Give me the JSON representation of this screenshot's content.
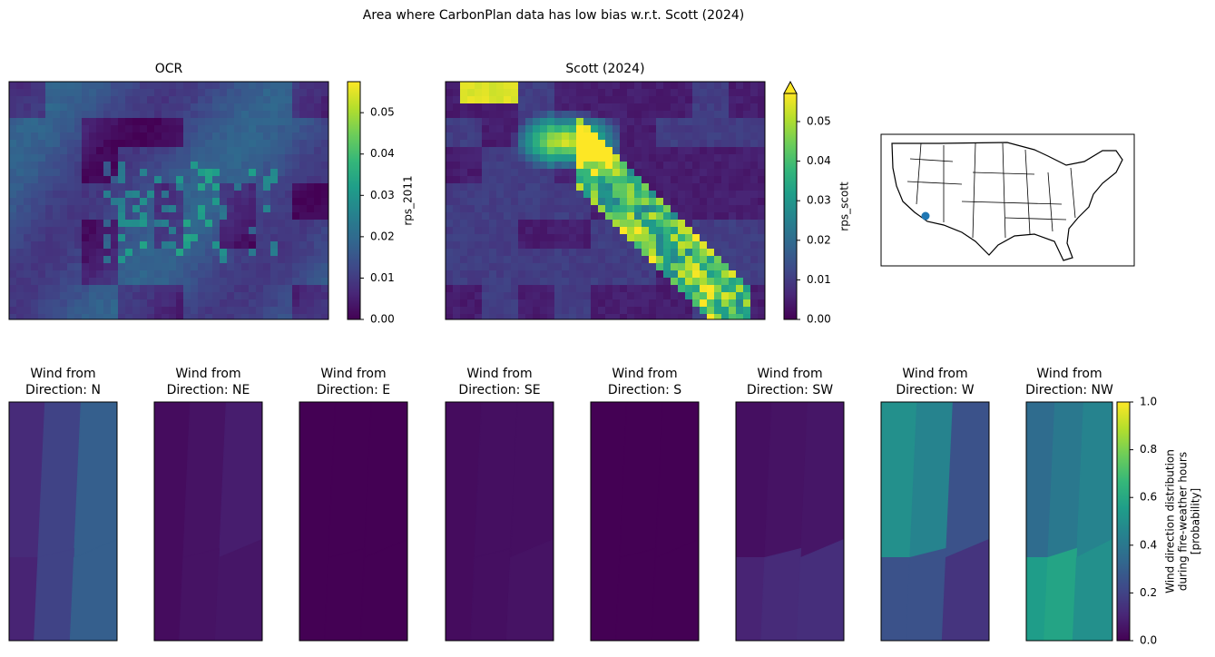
{
  "figure": {
    "title": "Area where CarbonPlan data has low bias w.r.t. Scott (2024)"
  },
  "chart_data": [
    {
      "type": "heatmap",
      "title": "OCR",
      "colorbar_label": "rps_2011",
      "clim": [
        0,
        0.0575
      ],
      "cticks": [
        {
          "value": 0,
          "label": "0.00"
        },
        0.01,
        0.02,
        0.03,
        0.04,
        0.05
      ]
    },
    {
      "type": "heatmap",
      "title": "Scott (2024)",
      "colorbar_label": "rps_scott",
      "clim": [
        0,
        0.0571
      ],
      "extend": "max",
      "cticks": [
        {
          "value": 0,
          "label": "0.00"
        },
        0.01,
        0.02,
        0.03,
        0.04,
        0.05
      ]
    },
    {
      "type": "map",
      "marker_color": "#1f77b4"
    },
    {
      "type": "wind_panels",
      "titles": [
        [
          "Wind from",
          "Direction: N"
        ],
        [
          "Wind from",
          "Direction: NE"
        ],
        [
          "Wind from",
          "Direction: E"
        ],
        [
          "Wind from",
          "Direction: SE"
        ],
        [
          "Wind from",
          "Direction: S"
        ],
        [
          "Wind from",
          "Direction: SW"
        ],
        [
          "Wind from",
          "Direction: W"
        ],
        [
          "Wind from",
          "Direction: NW"
        ]
      ],
      "colorbar_label": [
        "Wind direction distribution",
        "during fire-weather hours",
        "[probability]"
      ],
      "clim": [
        0,
        1
      ],
      "cticks": [
        {
          "value": 0,
          "label": "0.0"
        },
        0.2,
        0.4,
        0.6,
        0.8,
        {
          "value": 1,
          "label": "1.0"
        }
      ]
    }
  ]
}
